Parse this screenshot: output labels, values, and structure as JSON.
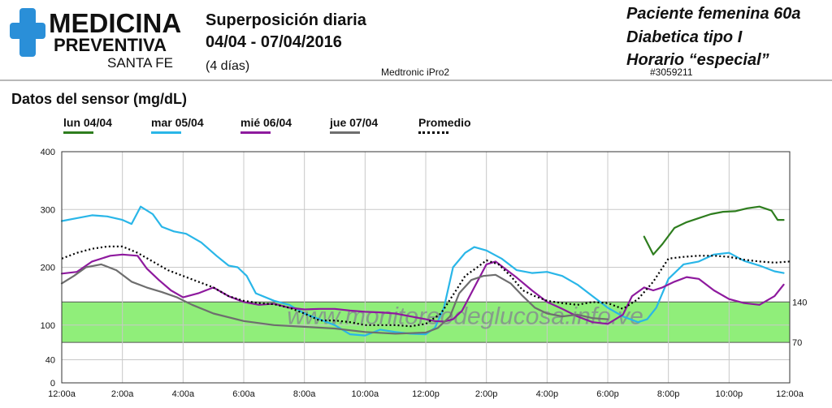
{
  "logo": {
    "line1": "MEDICINA",
    "line2": "PREVENTIVA",
    "line3": "SANTA FE"
  },
  "header": {
    "title": "Superposición diaria",
    "dates": "04/04 - 07/04/2016",
    "days": "(4 días)",
    "device": "Medtronic iPro2",
    "patient_id": "#3059211"
  },
  "notes": [
    "Paciente femenina 60a",
    "Diabetica tipo I",
    "Horario “especial”"
  ],
  "section_title": "Datos del sensor (mg/dL)",
  "watermark": "www.monitoreodeglucosa.info.ve",
  "colors": {
    "lun": "#2e7d1e",
    "mar": "#29b6e8",
    "mie": "#8e1a9e",
    "jue": "#6e6e6e",
    "prom": "#000000",
    "target": "#90ee7a"
  },
  "chart_data": {
    "type": "line",
    "x_ticks": [
      "12:00a",
      "2:00a",
      "4:00a",
      "6:00a",
      "8:00a",
      "10:00a",
      "12:00p",
      "2:00p",
      "4:00p",
      "6:00p",
      "8:00p",
      "10:00p",
      "12:00a"
    ],
    "y_ticks": [
      0,
      40,
      100,
      200,
      300,
      400
    ],
    "ylim": [
      0,
      400
    ],
    "xlim_hours": [
      0,
      24
    ],
    "target_range": [
      70,
      140
    ],
    "target_labels": [
      "140",
      "70"
    ],
    "grid": true,
    "legend_position": "top",
    "series": [
      {
        "key": "lun",
        "name": "lun 04/04",
        "style": "solid",
        "x": [
          19.2,
          19.5,
          19.8,
          20.2,
          20.6,
          21.0,
          21.4,
          21.8,
          22.2,
          22.6,
          23.0,
          23.4,
          23.6,
          23.8
        ],
        "y": [
          253,
          222,
          240,
          268,
          278,
          285,
          292,
          296,
          297,
          302,
          305,
          298,
          282,
          282
        ]
      },
      {
        "key": "mar",
        "name": "mar 05/04",
        "style": "solid",
        "x": [
          0,
          0.5,
          1.0,
          1.5,
          2.0,
          2.3,
          2.6,
          3.0,
          3.3,
          3.7,
          4.1,
          4.6,
          5.1,
          5.5,
          5.8,
          6.1,
          6.4,
          7.0,
          7.5,
          8.0,
          8.5,
          9.0,
          9.5,
          10.0,
          10.5,
          11.0,
          11.5,
          12.0,
          12.3,
          12.6,
          12.9,
          13.3,
          13.6,
          14.0,
          14.5,
          15.0,
          15.5,
          16.0,
          16.5,
          17.0,
          17.5,
          18.0,
          18.5,
          19.0,
          19.3,
          19.6,
          20.0,
          20.5,
          21.0,
          21.5,
          22.0,
          22.5,
          23.0,
          23.5,
          23.8
        ],
        "y": [
          280,
          285,
          290,
          288,
          282,
          275,
          305,
          292,
          270,
          262,
          258,
          243,
          220,
          203,
          200,
          185,
          155,
          142,
          135,
          120,
          110,
          100,
          84,
          82,
          92,
          88,
          85,
          84,
          95,
          130,
          200,
          225,
          235,
          229,
          215,
          195,
          190,
          192,
          185,
          170,
          150,
          130,
          115,
          105,
          110,
          130,
          180,
          205,
          210,
          222,
          225,
          211,
          203,
          193,
          190
        ]
      },
      {
        "key": "mie",
        "name": "mié 06/04",
        "style": "solid",
        "x": [
          0,
          0.5,
          1.0,
          1.6,
          2.0,
          2.5,
          2.8,
          3.2,
          3.6,
          4.0,
          4.5,
          5.0,
          5.5,
          6.0,
          6.5,
          7.0,
          7.5,
          8.0,
          8.5,
          9.0,
          9.5,
          10.0,
          10.5,
          11.0,
          11.5,
          12.0,
          12.3,
          12.6,
          12.9,
          13.2,
          13.6,
          14.0,
          14.3,
          14.6,
          15.0,
          15.5,
          16.0,
          16.5,
          17.0,
          17.5,
          18.0,
          18.5,
          18.8,
          19.2,
          19.5,
          19.8,
          20.2,
          20.6,
          21.0,
          21.5,
          22.0,
          22.5,
          23.0,
          23.5,
          23.8
        ],
        "y": [
          189,
          192,
          210,
          220,
          222,
          220,
          198,
          178,
          160,
          148,
          155,
          165,
          150,
          140,
          135,
          137,
          130,
          127,
          128,
          128,
          125,
          123,
          122,
          120,
          115,
          110,
          107,
          106,
          110,
          125,
          165,
          205,
          210,
          198,
          182,
          160,
          140,
          128,
          115,
          105,
          102,
          118,
          150,
          165,
          160,
          165,
          175,
          183,
          180,
          160,
          145,
          138,
          135,
          150,
          170
        ]
      },
      {
        "key": "jue",
        "name": "jue 07/04",
        "style": "solid",
        "x": [
          0,
          0.4,
          0.8,
          1.3,
          1.8,
          2.3,
          2.8,
          3.3,
          3.8,
          4.3,
          5.0,
          6.0,
          7.0,
          8.0,
          9.0,
          10.0,
          11.0,
          12.0,
          12.4,
          12.8,
          13.1,
          13.5,
          13.9,
          14.3,
          14.8,
          15.2,
          15.6,
          16.0,
          16.5,
          17.0,
          17.5,
          18.0
        ],
        "y": [
          172,
          185,
          200,
          205,
          195,
          175,
          165,
          157,
          148,
          135,
          120,
          107,
          100,
          97,
          94,
          88,
          85,
          87,
          95,
          115,
          155,
          178,
          185,
          187,
          172,
          150,
          130,
          120,
          115,
          118,
          112,
          110
        ]
      },
      {
        "key": "prom",
        "name": "Promedio",
        "style": "dotted",
        "x": [
          0,
          0.5,
          1.0,
          1.5,
          2.0,
          2.5,
          3.0,
          3.5,
          4.0,
          4.5,
          5.0,
          5.5,
          6.0,
          6.5,
          7.0,
          7.5,
          8.0,
          8.5,
          9.0,
          9.5,
          10.0,
          10.5,
          11.0,
          11.5,
          12.0,
          12.5,
          13.0,
          13.3,
          13.7,
          14.0,
          14.4,
          14.8,
          15.2,
          15.6,
          16.0,
          16.5,
          17.0,
          17.5,
          18.0,
          18.5,
          19.0,
          19.5,
          20.0,
          20.5,
          21.0,
          21.5,
          22.0,
          22.5,
          23.0,
          23.5,
          24.0
        ],
        "y": [
          215,
          225,
          232,
          236,
          236,
          225,
          210,
          195,
          185,
          175,
          165,
          150,
          142,
          138,
          136,
          130,
          120,
          108,
          108,
          105,
          100,
          100,
          100,
          98,
          102,
          120,
          160,
          185,
          200,
          212,
          205,
          185,
          160,
          150,
          142,
          138,
          135,
          140,
          138,
          128,
          145,
          175,
          215,
          218,
          220,
          220,
          218,
          213,
          210,
          208,
          210
        ]
      }
    ]
  }
}
